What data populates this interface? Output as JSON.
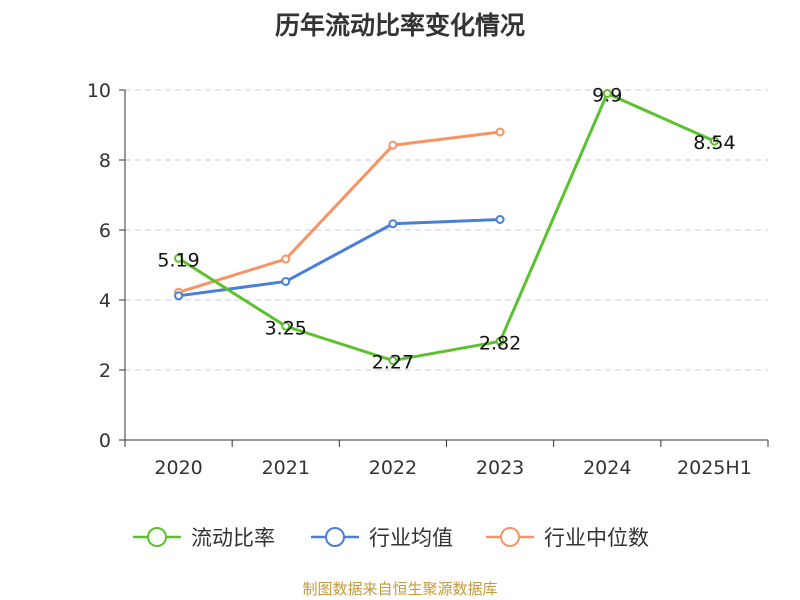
{
  "colors": {
    "ratio": "#5cc12e",
    "avg": "#4a7fd8",
    "median": "#f79463",
    "source": "#c49a3c",
    "axis": "#333333",
    "grid": "#cccccc"
  },
  "chart_data": {
    "type": "line",
    "title": "历年流动比率变化情况",
    "categories": [
      "2020",
      "2021",
      "2022",
      "2023",
      "2024",
      "2025H1"
    ],
    "y_ticks": [
      "0",
      "2",
      "4",
      "6",
      "8",
      "10"
    ],
    "ylim": [
      0,
      10
    ],
    "grid": true,
    "legend_position": "bottom",
    "series": [
      {
        "name": "流动比率",
        "key": "ratio",
        "values": [
          5.19,
          3.25,
          2.27,
          2.82,
          9.9,
          8.54
        ],
        "labels": [
          "5.19",
          "3.25",
          "2.27",
          "2.82",
          "9.9",
          "8.54"
        ]
      },
      {
        "name": "行业均值",
        "key": "avg",
        "values": [
          4.12,
          4.53,
          6.18,
          6.3,
          null,
          null
        ]
      },
      {
        "name": "行业中位数",
        "key": "median",
        "values": [
          4.22,
          5.17,
          8.42,
          8.8,
          null,
          null
        ]
      }
    ]
  },
  "source_text": "制图数据来自恒生聚源数据库"
}
